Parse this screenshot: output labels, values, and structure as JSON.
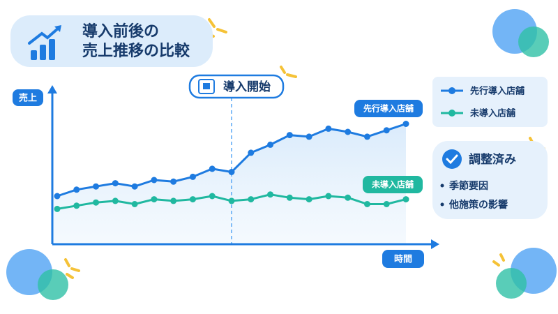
{
  "chart_data": {
    "type": "line",
    "title": [
      "導入前後の",
      "売上推移の比較"
    ],
    "y_label": "売上",
    "x_label": "時間",
    "categories": [
      null,
      null,
      null,
      null,
      null,
      null,
      null,
      null,
      null,
      null,
      null,
      null,
      null,
      null,
      null,
      null,
      null,
      null,
      null
    ],
    "series": [
      {
        "name": "先行導入店舗",
        "color": "#1e7be0",
        "values": [
          30,
          34,
          36,
          38,
          36,
          40,
          39,
          42,
          47,
          45,
          57,
          62,
          68,
          67,
          72,
          70,
          67,
          71,
          75
        ]
      },
      {
        "name": "未導入店舗",
        "color": "#20b8a0",
        "values": [
          22,
          24,
          26,
          27,
          25,
          28,
          27,
          28,
          30,
          27,
          28,
          31,
          29,
          28,
          30,
          29,
          25,
          25,
          28
        ]
      }
    ],
    "ylim": [
      0,
      100
    ],
    "annotation": {
      "text": "導入開始",
      "x_index": 9
    },
    "note": {
      "title": "調整済み",
      "items": [
        "季節要因",
        "他施策の影響"
      ]
    },
    "legend": "top-right"
  }
}
